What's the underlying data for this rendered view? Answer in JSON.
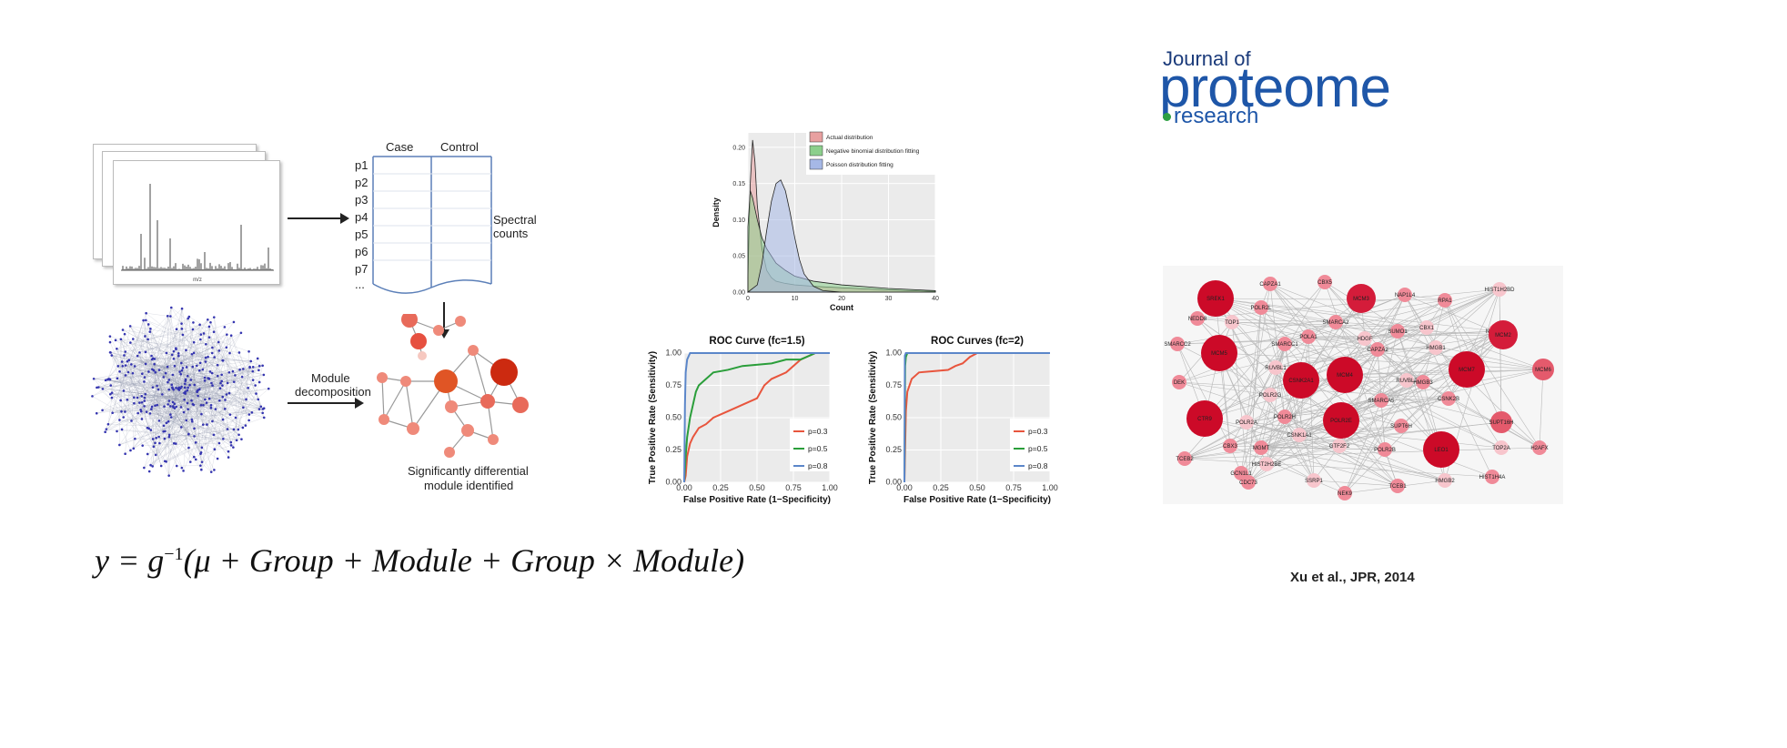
{
  "left_figure": {
    "table_headers": [
      "Case",
      "Control"
    ],
    "row_labels": [
      "p1",
      "p2",
      "p3",
      "p4",
      "p5",
      "p6",
      "p7",
      "..."
    ],
    "spectral_label_1": "Spectral",
    "spectral_label_2": "counts",
    "spectrum_axis_label": "m/z",
    "module_label_1": "Module",
    "module_label_2": "decomposition",
    "result_label_1": "Significantly differential",
    "result_label_2": "module identified"
  },
  "formula": {
    "lhs": "y = g",
    "exp": "−1",
    "rhs": "(μ + Group + Module + Group × Module)"
  },
  "logo": {
    "line1": "Journal of",
    "line2": "proteome",
    "line3": "research"
  },
  "citation": "Xu et al., JPR, 2014",
  "chart_data": [
    {
      "type": "area",
      "title": "",
      "xlabel": "Count",
      "ylabel": "Density",
      "xlim": [
        0,
        40
      ],
      "ylim": [
        0,
        0.22
      ],
      "xticks": [
        "0",
        "10",
        "20",
        "30",
        "40"
      ],
      "yticks": [
        "0.00",
        "0.05",
        "0.10",
        "0.15",
        "0.20"
      ],
      "legend_position": "top-right",
      "series": [
        {
          "name": "Actual distribution",
          "color": "#e8a0a0",
          "x": [
            0,
            0.5,
            1,
            1.5,
            2,
            3,
            4,
            5,
            6,
            8,
            10,
            14,
            20,
            30,
            40
          ],
          "y": [
            0.02,
            0.15,
            0.21,
            0.18,
            0.12,
            0.06,
            0.03,
            0.02,
            0.015,
            0.012,
            0.01,
            0.008,
            0.006,
            0.003,
            0.001
          ]
        },
        {
          "name": "Negative binomial distribution fitting",
          "color": "#8ccf8c",
          "x": [
            0,
            0.5,
            1,
            2,
            3,
            4,
            6,
            8,
            10,
            14,
            20,
            30,
            40
          ],
          "y": [
            0.09,
            0.14,
            0.13,
            0.1,
            0.075,
            0.06,
            0.04,
            0.03,
            0.022,
            0.015,
            0.01,
            0.005,
            0.002
          ]
        },
        {
          "name": "Poisson distribution fitting",
          "color": "#a6b8e6",
          "x": [
            0,
            2,
            3,
            4,
            5,
            6,
            7,
            8,
            9,
            10,
            11,
            12,
            14,
            16,
            20
          ],
          "y": [
            0.0,
            0.01,
            0.04,
            0.085,
            0.125,
            0.15,
            0.155,
            0.14,
            0.11,
            0.075,
            0.045,
            0.025,
            0.008,
            0.002,
            0.0
          ]
        }
      ]
    },
    {
      "type": "line",
      "title": "ROC Curve (fc=1.5)",
      "xlabel": "False Positive Rate (1−Specificity)",
      "ylabel": "True Positive Rate (Sensitivity)",
      "xlim": [
        0,
        1
      ],
      "ylim": [
        0,
        1
      ],
      "xticks": [
        "0.00",
        "0.25",
        "0.50",
        "0.75",
        "1.00"
      ],
      "yticks": [
        "0.00",
        "0.25",
        "0.50",
        "0.75",
        "1.00"
      ],
      "legend_position": "bottom-right",
      "series": [
        {
          "name": "p=0.3",
          "color": "#e8553d",
          "x": [
            0,
            0.01,
            0.02,
            0.04,
            0.06,
            0.1,
            0.15,
            0.2,
            0.3,
            0.4,
            0.5,
            0.55,
            0.6,
            0.7,
            0.8,
            0.9,
            1.0
          ],
          "y": [
            0,
            0.05,
            0.2,
            0.3,
            0.35,
            0.42,
            0.45,
            0.5,
            0.55,
            0.6,
            0.65,
            0.75,
            0.8,
            0.85,
            0.95,
            1.0,
            1.0
          ]
        },
        {
          "name": "p=0.5",
          "color": "#2a9e3a",
          "x": [
            0,
            0.01,
            0.02,
            0.04,
            0.06,
            0.08,
            0.1,
            0.15,
            0.2,
            0.3,
            0.4,
            0.6,
            0.7,
            0.8,
            0.9,
            1.0
          ],
          "y": [
            0,
            0.2,
            0.35,
            0.5,
            0.6,
            0.7,
            0.75,
            0.8,
            0.85,
            0.87,
            0.9,
            0.92,
            0.95,
            0.95,
            1.0,
            1.0
          ]
        },
        {
          "name": "p=0.8",
          "color": "#5b86c9",
          "x": [
            0,
            0.005,
            0.01,
            0.02,
            0.04,
            1.0
          ],
          "y": [
            0,
            0.6,
            0.85,
            0.95,
            1.0,
            1.0
          ]
        }
      ]
    },
    {
      "type": "line",
      "title": "ROC Curves (fc=2)",
      "xlabel": "False Positive Rate (1−Specificity)",
      "ylabel": "True Positive Rate (Sensitivity)",
      "xlim": [
        0,
        1
      ],
      "ylim": [
        0,
        1
      ],
      "xticks": [
        "0.00",
        "0.25",
        "0.50",
        "0.75",
        "1.00"
      ],
      "yticks": [
        "0.00",
        "0.25",
        "0.50",
        "0.75",
        "1.00"
      ],
      "legend_position": "bottom-right",
      "series": [
        {
          "name": "p=0.3",
          "color": "#e8553d",
          "x": [
            0,
            0.01,
            0.02,
            0.05,
            0.1,
            0.3,
            0.35,
            0.4,
            0.45,
            0.5,
            1.0
          ],
          "y": [
            0,
            0.55,
            0.7,
            0.8,
            0.85,
            0.87,
            0.9,
            0.92,
            0.97,
            1.0,
            1.0
          ]
        },
        {
          "name": "p=0.5",
          "color": "#2a9e3a",
          "x": [
            0,
            0.005,
            0.01,
            0.02,
            1.0
          ],
          "y": [
            0,
            0.9,
            0.97,
            1.0,
            1.0
          ]
        },
        {
          "name": "p=0.8",
          "color": "#5b86c9",
          "x": [
            0,
            0.003,
            0.01,
            1.0
          ],
          "y": [
            0,
            0.98,
            1.0,
            1.0
          ]
        }
      ]
    }
  ],
  "network": {
    "nodes": [
      {
        "label": "SREK1",
        "size": "xl"
      },
      {
        "label": "CAPZA1",
        "size": "s"
      },
      {
        "label": "CBX5",
        "size": "s"
      },
      {
        "label": "MCM3",
        "size": "l"
      },
      {
        "label": "NAP1L4",
        "size": "s"
      },
      {
        "label": "RPA1",
        "size": "s"
      },
      {
        "label": "HIST1H2BD",
        "size": "s"
      },
      {
        "label": "NEDD8",
        "size": "s"
      },
      {
        "label": "POLR2L",
        "size": "s"
      },
      {
        "label": "TOP1",
        "size": "s"
      },
      {
        "label": "SMARCA2",
        "size": "s"
      },
      {
        "label": "NAP1L1",
        "size": "s"
      },
      {
        "label": "CBX1",
        "size": "s"
      },
      {
        "label": "MCM2",
        "size": "l"
      },
      {
        "label": "SMARCC2",
        "size": "s"
      },
      {
        "label": "MCM5",
        "size": "xl"
      },
      {
        "label": "SMARCC1",
        "size": "s"
      },
      {
        "label": "POLA1",
        "size": "s"
      },
      {
        "label": "HDGF",
        "size": "s"
      },
      {
        "label": "SUMO1",
        "size": "s"
      },
      {
        "label": "CAPZA2",
        "size": "s"
      },
      {
        "label": "HMGB1",
        "size": "s"
      },
      {
        "label": "MCM6",
        "size": "m"
      },
      {
        "label": "DEK",
        "size": "s"
      },
      {
        "label": "RUVBL1",
        "size": "s"
      },
      {
        "label": "CSNK2A1",
        "size": "xl"
      },
      {
        "label": "MCM4",
        "size": "xl"
      },
      {
        "label": "RUVBL2",
        "size": "s"
      },
      {
        "label": "HMGB3",
        "size": "s"
      },
      {
        "label": "MCM7",
        "size": "xl"
      },
      {
        "label": "POLR2G",
        "size": "s"
      },
      {
        "label": "SMARCA5",
        "size": "s"
      },
      {
        "label": "CSNK2B",
        "size": "s"
      },
      {
        "label": "CTR9",
        "size": "xl"
      },
      {
        "label": "POLR2H",
        "size": "s"
      },
      {
        "label": "POLR2E",
        "size": "xl"
      },
      {
        "label": "POLR2A",
        "size": "s"
      },
      {
        "label": "SUPT6H",
        "size": "s"
      },
      {
        "label": "SUPT16H",
        "size": "m"
      },
      {
        "label": "CSNK1A1",
        "size": "s"
      },
      {
        "label": "CBX3",
        "size": "s"
      },
      {
        "label": "MGMT",
        "size": "s"
      },
      {
        "label": "GTF2F2",
        "size": "s"
      },
      {
        "label": "POLR2B",
        "size": "s"
      },
      {
        "label": "LEO1",
        "size": "xl"
      },
      {
        "label": "TOP2A",
        "size": "s"
      },
      {
        "label": "H2AFX",
        "size": "s"
      },
      {
        "label": "TCEB2",
        "size": "s"
      },
      {
        "label": "HIST2H2BE",
        "size": "s"
      },
      {
        "label": "GCN1L1",
        "size": "s"
      },
      {
        "label": "CDC73",
        "size": "s"
      },
      {
        "label": "SSRP1",
        "size": "s"
      },
      {
        "label": "NEK9",
        "size": "s"
      },
      {
        "label": "TCEB1",
        "size": "s"
      },
      {
        "label": "HMGB2",
        "size": "s"
      },
      {
        "label": "HIST1H4A",
        "size": "s"
      }
    ]
  }
}
